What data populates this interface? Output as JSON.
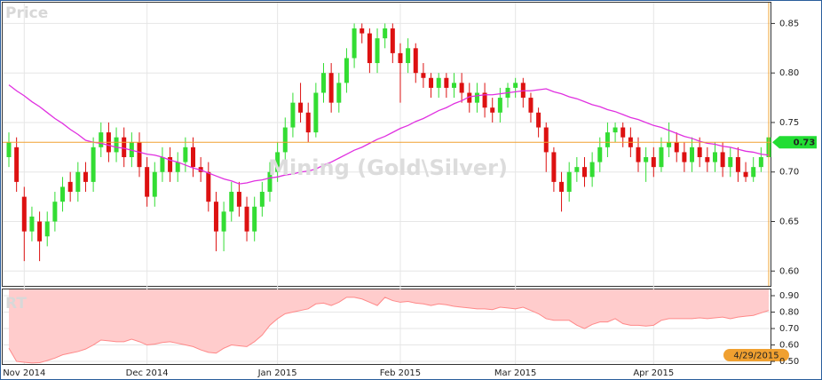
{
  "chart_data": [
    {
      "type": "candlestick",
      "title": "Price",
      "watermark": "Mining (Gold\\Silver)",
      "categories": [
        null,
        null,
        "Nov 2014",
        null,
        null,
        null,
        null,
        null,
        null,
        null,
        null,
        null,
        null,
        null,
        null,
        null,
        null,
        null,
        "Dec 2014",
        null,
        null,
        null,
        null,
        null,
        null,
        null,
        null,
        null,
        null,
        null,
        null,
        null,
        null,
        null,
        null,
        "Jan 2015",
        null,
        null,
        null,
        null,
        null,
        null,
        null,
        null,
        null,
        null,
        null,
        null,
        null,
        null,
        null,
        "Feb 2015",
        null,
        null,
        null,
        null,
        null,
        null,
        null,
        null,
        null,
        null,
        null,
        null,
        null,
        null,
        "Mar 2015",
        null,
        null,
        null,
        null,
        null,
        null,
        null,
        null,
        null,
        null,
        null,
        null,
        null,
        null,
        null,
        null,
        null,
        "Apr 2015",
        null,
        null,
        null,
        null,
        null,
        null,
        null,
        null,
        null,
        null,
        null,
        null,
        null,
        null,
        null
      ],
      "open": [
        0.715,
        0.725,
        0.675,
        0.64,
        0.65,
        0.635,
        0.65,
        0.67,
        0.69,
        0.68,
        0.7,
        0.69,
        0.725,
        0.74,
        0.72,
        0.735,
        0.715,
        0.73,
        0.705,
        0.675,
        0.7,
        0.715,
        0.7,
        0.71,
        0.725,
        0.705,
        0.7,
        0.67,
        0.64,
        0.66,
        0.68,
        0.665,
        0.64,
        0.665,
        0.68,
        0.7,
        0.72,
        0.745,
        0.77,
        0.76,
        0.74,
        0.78,
        0.8,
        0.77,
        0.79,
        0.815,
        0.845,
        0.84,
        0.81,
        0.835,
        0.845,
        0.82,
        0.81,
        0.825,
        0.8,
        0.795,
        0.785,
        0.795,
        0.785,
        0.79,
        0.78,
        0.77,
        0.78,
        0.765,
        0.76,
        0.775,
        0.785,
        0.79,
        0.775,
        0.76,
        0.745,
        0.72,
        0.69,
        0.68,
        0.7,
        0.705,
        0.695,
        0.71,
        0.725,
        0.74,
        0.745,
        0.735,
        0.725,
        0.71,
        0.715,
        0.705,
        0.725,
        0.73,
        0.72,
        0.71,
        0.725,
        0.715,
        0.71,
        0.72,
        0.705,
        0.715,
        0.7,
        0.695,
        0.705,
        0.715
      ],
      "high": [
        0.74,
        0.735,
        0.685,
        0.665,
        0.66,
        0.66,
        0.68,
        0.695,
        0.7,
        0.71,
        0.71,
        0.735,
        0.75,
        0.75,
        0.745,
        0.745,
        0.74,
        0.74,
        0.715,
        0.71,
        0.725,
        0.725,
        0.72,
        0.735,
        0.735,
        0.715,
        0.71,
        0.68,
        0.67,
        0.69,
        0.69,
        0.675,
        0.675,
        0.69,
        0.71,
        0.73,
        0.755,
        0.78,
        0.79,
        0.77,
        0.79,
        0.81,
        0.81,
        0.8,
        0.825,
        0.85,
        0.85,
        0.845,
        0.845,
        0.85,
        0.85,
        0.83,
        0.835,
        0.83,
        0.81,
        0.8,
        0.8,
        0.8,
        0.8,
        0.8,
        0.79,
        0.79,
        0.79,
        0.775,
        0.785,
        0.79,
        0.795,
        0.795,
        0.78,
        0.765,
        0.75,
        0.725,
        0.7,
        0.71,
        0.715,
        0.715,
        0.72,
        0.735,
        0.75,
        0.75,
        0.75,
        0.745,
        0.735,
        0.725,
        0.725,
        0.735,
        0.75,
        0.74,
        0.73,
        0.735,
        0.735,
        0.725,
        0.73,
        0.73,
        0.725,
        0.725,
        0.71,
        0.715,
        0.725,
        0.74
      ],
      "low": [
        0.705,
        0.68,
        0.61,
        0.63,
        0.61,
        0.625,
        0.64,
        0.66,
        0.67,
        0.67,
        0.68,
        0.68,
        0.715,
        0.71,
        0.71,
        0.705,
        0.705,
        0.695,
        0.665,
        0.665,
        0.69,
        0.69,
        0.69,
        0.7,
        0.695,
        0.69,
        0.66,
        0.62,
        0.62,
        0.65,
        0.655,
        0.63,
        0.63,
        0.655,
        0.67,
        0.69,
        0.71,
        0.735,
        0.75,
        0.73,
        0.735,
        0.77,
        0.76,
        0.76,
        0.78,
        0.805,
        0.83,
        0.8,
        0.8,
        0.825,
        0.81,
        0.77,
        0.8,
        0.79,
        0.785,
        0.775,
        0.775,
        0.775,
        0.775,
        0.77,
        0.76,
        0.76,
        0.755,
        0.75,
        0.75,
        0.765,
        0.775,
        0.765,
        0.75,
        0.735,
        0.7,
        0.68,
        0.66,
        0.67,
        0.69,
        0.685,
        0.685,
        0.7,
        0.715,
        0.73,
        0.725,
        0.715,
        0.7,
        0.69,
        0.695,
        0.7,
        0.715,
        0.71,
        0.7,
        0.7,
        0.705,
        0.7,
        0.7,
        0.695,
        0.695,
        0.69,
        0.69,
        0.69,
        0.7,
        0.71
      ],
      "close": [
        0.73,
        0.69,
        0.64,
        0.655,
        0.63,
        0.65,
        0.67,
        0.685,
        0.68,
        0.7,
        0.69,
        0.725,
        0.74,
        0.72,
        0.735,
        0.715,
        0.73,
        0.705,
        0.675,
        0.7,
        0.715,
        0.7,
        0.71,
        0.725,
        0.705,
        0.7,
        0.67,
        0.64,
        0.66,
        0.68,
        0.665,
        0.64,
        0.665,
        0.68,
        0.7,
        0.72,
        0.745,
        0.77,
        0.76,
        0.74,
        0.78,
        0.8,
        0.77,
        0.79,
        0.815,
        0.845,
        0.84,
        0.81,
        0.835,
        0.845,
        0.82,
        0.81,
        0.825,
        0.8,
        0.795,
        0.785,
        0.795,
        0.785,
        0.79,
        0.78,
        0.77,
        0.78,
        0.765,
        0.76,
        0.775,
        0.785,
        0.79,
        0.775,
        0.76,
        0.745,
        0.72,
        0.69,
        0.68,
        0.7,
        0.705,
        0.695,
        0.71,
        0.725,
        0.74,
        0.745,
        0.735,
        0.725,
        0.71,
        0.715,
        0.705,
        0.725,
        0.73,
        0.72,
        0.71,
        0.725,
        0.715,
        0.71,
        0.72,
        0.705,
        0.715,
        0.7,
        0.695,
        0.705,
        0.715,
        0.735
      ],
      "up_color": "#33dd33",
      "down_color": "#dd1111",
      "line": {
        "color": "#e030e0",
        "values": [
          0.788,
          0.782,
          0.777,
          0.771,
          0.766,
          0.76,
          0.754,
          0.749,
          0.743,
          0.738,
          0.732,
          0.73,
          0.729,
          0.727,
          0.725,
          0.724,
          0.722,
          0.72,
          0.718,
          0.717,
          0.715,
          0.712,
          0.71,
          0.707,
          0.704,
          0.702,
          0.699,
          0.696,
          0.693,
          0.691,
          0.688,
          0.689,
          0.691,
          0.692,
          0.694,
          0.695,
          0.697,
          0.698,
          0.7,
          0.701,
          0.703,
          0.707,
          0.71,
          0.714,
          0.718,
          0.722,
          0.725,
          0.729,
          0.733,
          0.736,
          0.74,
          0.744,
          0.747,
          0.751,
          0.754,
          0.758,
          0.762,
          0.765,
          0.769,
          0.772,
          0.776,
          0.777,
          0.778,
          0.778,
          0.779,
          0.78,
          0.781,
          0.782,
          0.782,
          0.783,
          0.784,
          0.781,
          0.779,
          0.776,
          0.774,
          0.771,
          0.768,
          0.766,
          0.763,
          0.761,
          0.758,
          0.755,
          0.753,
          0.75,
          0.747,
          0.745,
          0.742,
          0.739,
          0.736,
          0.734,
          0.731,
          0.729,
          0.728,
          0.726,
          0.725,
          0.723,
          0.721,
          0.72,
          0.718,
          0.717
        ]
      },
      "last_price": 0.73,
      "last_date": "4/29/2015",
      "marker_color": "#f0a030",
      "ylim": [
        0.585,
        0.871
      ],
      "yticks": [
        {
          "value": 0.6,
          "label": "0.60"
        },
        {
          "value": 0.65,
          "label": "0.65"
        },
        {
          "value": 0.7,
          "label": "0.70"
        },
        {
          "value": 0.75,
          "label": "0.75"
        },
        {
          "value": 0.8,
          "label": "0.80"
        },
        {
          "value": 0.85,
          "label": "0.85"
        }
      ],
      "grid": true
    },
    {
      "type": "area",
      "title": "RT",
      "color": "#ffcccc",
      "line_color": "#ff8888",
      "values": [
        0.58,
        0.5,
        0.495,
        0.49,
        0.492,
        0.505,
        0.52,
        0.54,
        0.55,
        0.56,
        0.575,
        0.6,
        0.63,
        0.625,
        0.62,
        0.62,
        0.635,
        0.62,
        0.6,
        0.605,
        0.615,
        0.62,
        0.61,
        0.6,
        0.59,
        0.57,
        0.555,
        0.55,
        0.58,
        0.6,
        0.595,
        0.59,
        0.62,
        0.66,
        0.72,
        0.76,
        0.79,
        0.8,
        0.81,
        0.82,
        0.85,
        0.855,
        0.84,
        0.86,
        0.89,
        0.89,
        0.88,
        0.86,
        0.84,
        0.89,
        0.87,
        0.86,
        0.865,
        0.855,
        0.85,
        0.84,
        0.85,
        0.845,
        0.835,
        0.83,
        0.825,
        0.82,
        0.82,
        0.815,
        0.83,
        0.825,
        0.82,
        0.83,
        0.81,
        0.79,
        0.76,
        0.75,
        0.75,
        0.75,
        0.72,
        0.7,
        0.725,
        0.74,
        0.74,
        0.76,
        0.73,
        0.72,
        0.72,
        0.715,
        0.72,
        0.75,
        0.76,
        0.76,
        0.76,
        0.76,
        0.765,
        0.76,
        0.765,
        0.77,
        0.76,
        0.77,
        0.775,
        0.78,
        0.795,
        0.81
      ],
      "ylim": [
        0.484,
        0.938
      ],
      "yticks": [
        {
          "value": 0.5,
          "label": "0.50"
        },
        {
          "value": 0.6,
          "label": "0.60"
        },
        {
          "value": 0.7,
          "label": "0.70"
        },
        {
          "value": 0.8,
          "label": "0.80"
        },
        {
          "value": 0.9,
          "label": "0.90"
        }
      ],
      "grid": true
    }
  ]
}
